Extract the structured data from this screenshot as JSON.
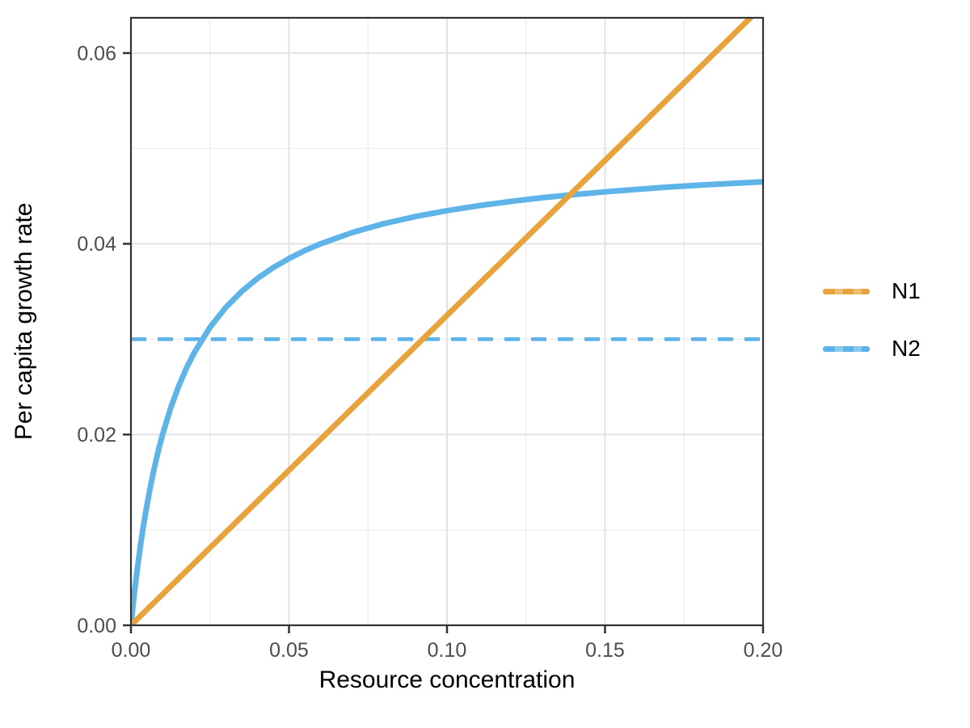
{
  "figure": {
    "background": "#ffffff"
  },
  "axes": {
    "x": {
      "title": "Resource concentration",
      "tick_labels": [
        "0.00",
        "0.05",
        "0.10",
        "0.15",
        "0.20"
      ],
      "tick_values": [
        0,
        0.05,
        0.1,
        0.15,
        0.2
      ],
      "minor_values": [
        0.025,
        0.075,
        0.125,
        0.175
      ],
      "range": [
        0,
        0.2
      ]
    },
    "y": {
      "title": "Per capita growth rate",
      "tick_labels": [
        "0.00",
        "0.02",
        "0.04",
        "0.06"
      ],
      "tick_values": [
        0,
        0.02,
        0.04,
        0.06
      ],
      "minor_values": [
        0.01,
        0.03,
        0.05
      ],
      "range": [
        0,
        0.0637
      ]
    }
  },
  "legend": {
    "position": "right-outside",
    "items": [
      {
        "label": "N1",
        "color": "#E8A33D"
      },
      {
        "label": "N2",
        "color": "#5EB4E8"
      }
    ]
  },
  "style": {
    "grid_major_color": "#e3e3e3",
    "grid_minor_color": "#efefef",
    "panel_border_color": "#333333",
    "tick_color": "#333333",
    "tick_label_color": "#4d4d4d",
    "axis_title_color": "#000000",
    "line_width": 7,
    "dash_width": 4.6
  },
  "chart_data": {
    "type": "line",
    "title": "",
    "xlabel": "Resource concentration",
    "ylabel": "Per capita growth rate",
    "xlim": [
      0,
      0.2
    ],
    "ylim": [
      0,
      0.0637
    ],
    "grid": "on",
    "legend_position": "right-outside",
    "series": [
      {
        "name": "N1",
        "color": "#E8A33D",
        "style": "solid",
        "x": [
          0,
          0.2
        ],
        "y": [
          0,
          0.065
        ]
      },
      {
        "name": "N2",
        "color": "#5EB4E8",
        "style": "solid",
        "x": [
          0,
          0.001,
          0.002,
          0.003,
          0.004,
          0.005,
          0.006,
          0.007,
          0.008,
          0.009,
          0.01,
          0.0125,
          0.015,
          0.0175,
          0.02,
          0.025,
          0.03,
          0.035,
          0.04,
          0.045,
          0.05,
          0.055,
          0.06,
          0.07,
          0.08,
          0.09,
          0.1,
          0.11,
          0.12,
          0.13,
          0.14,
          0.15,
          0.16,
          0.17,
          0.18,
          0.19,
          0.2
        ],
        "y": [
          0,
          0.00313,
          0.00588,
          0.00833,
          0.01053,
          0.0125,
          0.01429,
          0.01591,
          0.01739,
          0.01875,
          0.02,
          0.02273,
          0.025,
          0.02692,
          0.02857,
          0.03125,
          0.03333,
          0.035,
          0.03636,
          0.0375,
          0.03846,
          0.03929,
          0.04,
          0.04118,
          0.04211,
          0.04286,
          0.04348,
          0.044,
          0.04444,
          0.04483,
          0.04516,
          0.04545,
          0.04571,
          0.04595,
          0.04615,
          0.04634,
          0.04651
        ]
      }
    ],
    "reference_lines": [
      {
        "y": 0.03,
        "color": "#5EB4E8",
        "style": "dashed"
      }
    ]
  }
}
